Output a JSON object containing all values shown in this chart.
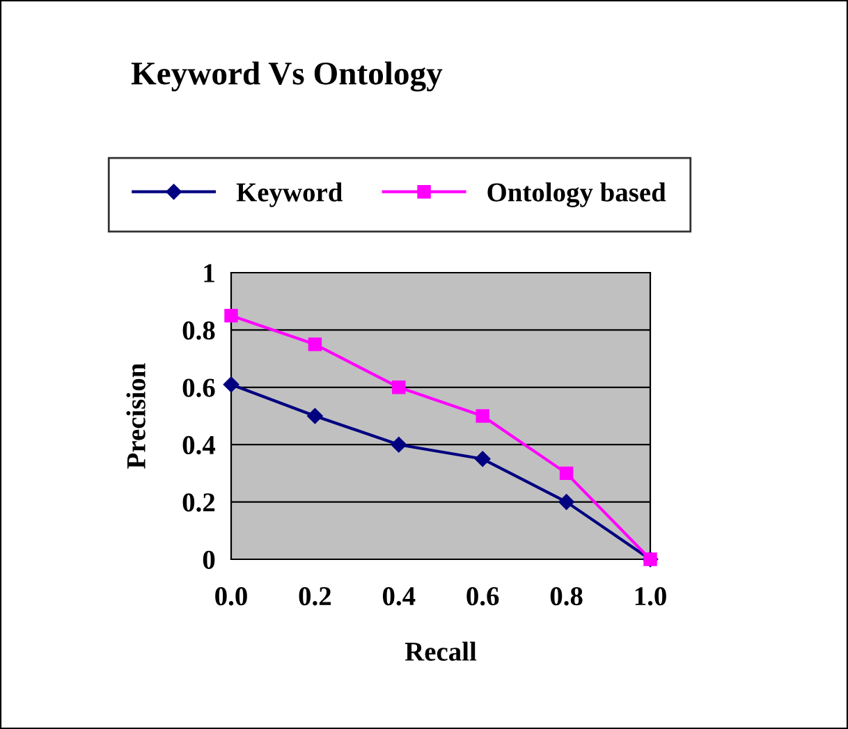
{
  "chart_data": {
    "type": "line",
    "title": "Keyword Vs Ontology",
    "xlabel": "Recall",
    "ylabel": "Precision",
    "x": [
      0,
      0.2,
      0.4,
      0.6,
      0.8,
      1.0
    ],
    "series": [
      {
        "name": "Keyword",
        "color": "#000080",
        "marker": "diamond",
        "values": [
          0.61,
          0.5,
          0.4,
          0.35,
          0.2,
          0.0
        ]
      },
      {
        "name": "Ontology based",
        "color": "#ff00ff",
        "marker": "square",
        "values": [
          0.85,
          0.75,
          0.6,
          0.5,
          0.3,
          0.0
        ]
      }
    ],
    "xlim": [
      0,
      1
    ],
    "xticks": [
      {
        "value": 0,
        "label": "0.0"
      },
      {
        "value": 0.2,
        "label": "0.2"
      },
      {
        "value": 0.4,
        "label": "0.4"
      },
      {
        "value": 0.6,
        "label": "0.6"
      },
      {
        "value": 0.8,
        "label": "0.8"
      },
      {
        "value": 1.0,
        "label": "1.0"
      }
    ],
    "ylim": [
      0,
      1
    ],
    "yticks": [
      0,
      0.2,
      0.4,
      0.6,
      0.8,
      1
    ],
    "grid": "y",
    "legend": "top",
    "line_style": "solid"
  }
}
